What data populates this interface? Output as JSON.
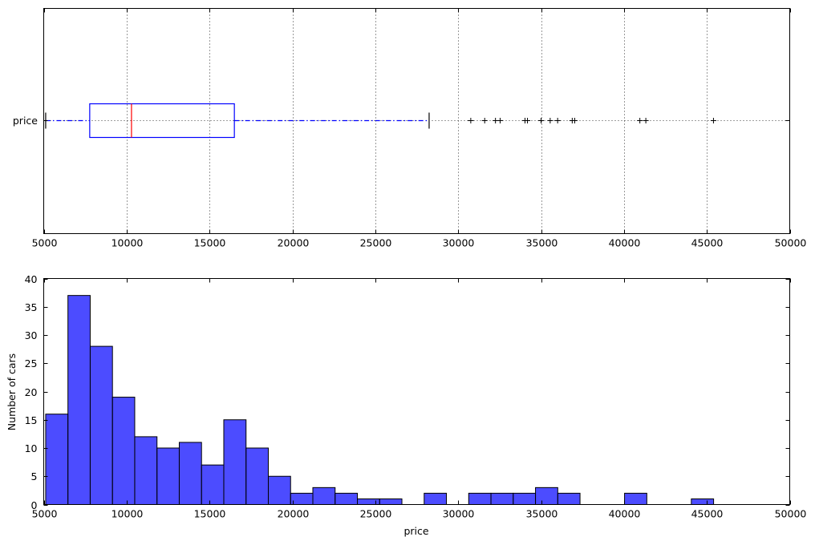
{
  "chart_data": [
    {
      "type": "boxplot",
      "orientation": "horizontal",
      "category_labels": [
        "price"
      ],
      "xlim": [
        5000,
        50000
      ],
      "x_ticks": [
        5000,
        10000,
        15000,
        20000,
        25000,
        30000,
        35000,
        40000,
        45000,
        50000
      ],
      "grid": true,
      "box": {
        "whisker_low": 5118,
        "q1": 7775,
        "median": 10295,
        "q3": 16500,
        "whisker_high": 28248
      },
      "outliers": [
        30760,
        31600,
        32250,
        32530,
        34030,
        34180,
        35000,
        35550,
        36000,
        36880,
        37030,
        40960,
        41320,
        45400
      ],
      "colors": {
        "box": "#0000ff",
        "median": "#ff0000",
        "whisker": "#0000ff",
        "cap": "#000000",
        "outlier": "#000000"
      }
    },
    {
      "type": "histogram",
      "xlabel": "price",
      "ylabel": "Number of cars",
      "xlim": [
        5000,
        50000
      ],
      "ylim": [
        0,
        40
      ],
      "x_ticks": [
        5000,
        10000,
        15000,
        20000,
        25000,
        30000,
        35000,
        40000,
        45000,
        50000
      ],
      "y_ticks": [
        0,
        5,
        10,
        15,
        20,
        25,
        30,
        35,
        40
      ],
      "bin_start": 5118,
      "bin_width": 1343,
      "counts": [
        16,
        37,
        28,
        19,
        12,
        10,
        11,
        7,
        15,
        10,
        5,
        2,
        3,
        2,
        1,
        1,
        0,
        2,
        0,
        2,
        2,
        2,
        3,
        2,
        0,
        0,
        2,
        0,
        0,
        1,
        0,
        0,
        0
      ],
      "grid": false,
      "colors": {
        "bar": "#0000ff",
        "bar_opacity": 0.7,
        "edge": "#000000"
      }
    }
  ]
}
